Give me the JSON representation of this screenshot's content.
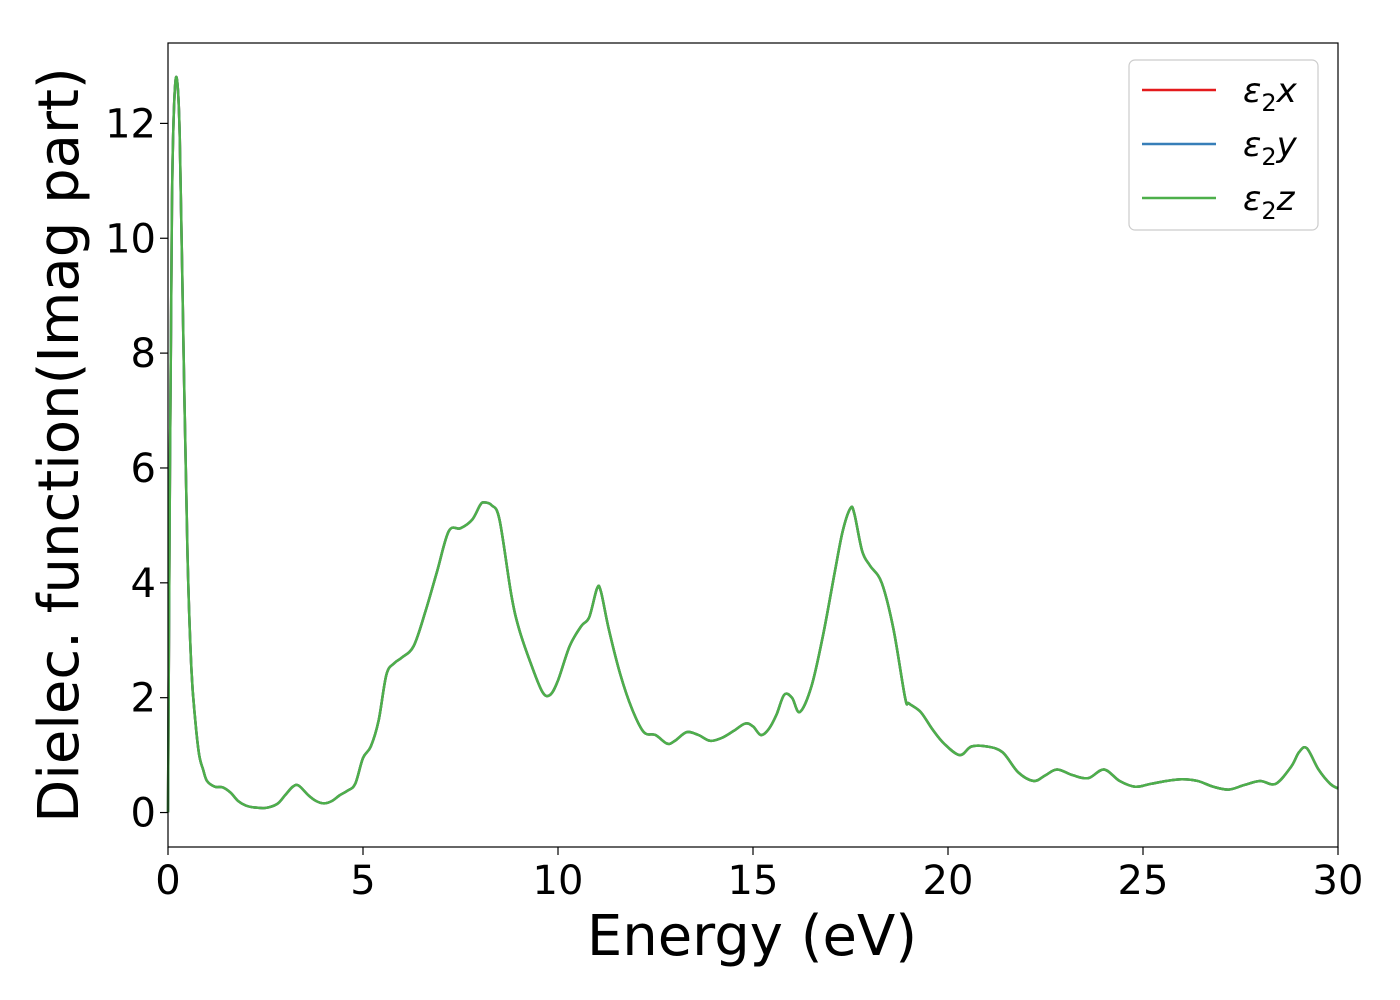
{
  "chart_data": {
    "type": "line",
    "title": "",
    "xlabel": "Energy (eV)",
    "ylabel": "Dielec. function(Imag part)",
    "xlim": [
      0,
      30
    ],
    "ylim": [
      -0.6,
      13.4
    ],
    "xticks": [
      0,
      5,
      10,
      15,
      20,
      25,
      30
    ],
    "yticks": [
      0,
      2,
      4,
      6,
      8,
      10,
      12
    ],
    "grid": false,
    "legend_position": "top-right",
    "series": [
      {
        "name": "ε2x",
        "legend_base": "ε",
        "legend_sub": "2",
        "legend_tail": "x",
        "color": "#e41a1c"
      },
      {
        "name": "ε2y",
        "legend_base": "ε",
        "legend_sub": "2",
        "legend_tail": "y",
        "color": "#377eb8"
      },
      {
        "name": "ε2z",
        "legend_base": "ε",
        "legend_sub": "2",
        "legend_tail": "z",
        "color": "#4daf4a"
      }
    ],
    "x": [
      0,
      0.05,
      0.1,
      0.15,
      0.22,
      0.3,
      0.4,
      0.5,
      0.6,
      0.7,
      0.8,
      0.9,
      1.0,
      1.2,
      1.4,
      1.6,
      1.8,
      2.0,
      2.2,
      2.5,
      2.8,
      3.0,
      3.2,
      3.35,
      3.6,
      3.8,
      4.0,
      4.2,
      4.4,
      4.6,
      4.8,
      5.0,
      5.2,
      5.4,
      5.6,
      5.8,
      6.0,
      6.3,
      6.6,
      6.9,
      7.2,
      7.5,
      7.8,
      8.0,
      8.1,
      8.3,
      8.5,
      8.8,
      9.0,
      9.3,
      9.6,
      9.8,
      10.0,
      10.3,
      10.6,
      10.8,
      11.0,
      11.1,
      11.3,
      11.6,
      11.9,
      12.2,
      12.5,
      12.8,
      13.0,
      13.3,
      13.6,
      13.9,
      14.2,
      14.5,
      14.8,
      15.0,
      15.2,
      15.4,
      15.6,
      15.8,
      16.0,
      16.2,
      16.5,
      16.8,
      17.1,
      17.3,
      17.5,
      17.6,
      17.8,
      18.0,
      18.3,
      18.6,
      18.9,
      19.0,
      19.3,
      19.6,
      19.9,
      20.3,
      20.6,
      21.0,
      21.4,
      21.8,
      22.2,
      22.5,
      22.8,
      23.2,
      23.6,
      24.0,
      24.4,
      24.8,
      25.2,
      25.6,
      26.0,
      26.4,
      26.8,
      27.2,
      27.6,
      28.0,
      28.4,
      28.8,
      29.0,
      29.2,
      29.5,
      29.8,
      30.0
    ],
    "values": [
      0.0,
      6.0,
      10.5,
      12.2,
      12.8,
      11.8,
      8.0,
      4.5,
      2.5,
      1.6,
      1.0,
      0.75,
      0.55,
      0.45,
      0.44,
      0.35,
      0.2,
      0.12,
      0.09,
      0.08,
      0.15,
      0.3,
      0.45,
      0.47,
      0.3,
      0.2,
      0.16,
      0.2,
      0.3,
      0.38,
      0.5,
      0.95,
      1.15,
      1.6,
      2.4,
      2.6,
      2.7,
      2.9,
      3.5,
      4.2,
      4.9,
      4.95,
      5.1,
      5.35,
      5.4,
      5.35,
      5.1,
      3.8,
      3.2,
      2.6,
      2.1,
      2.05,
      2.3,
      2.9,
      3.25,
      3.4,
      3.9,
      3.85,
      3.2,
      2.4,
      1.8,
      1.4,
      1.35,
      1.2,
      1.25,
      1.4,
      1.35,
      1.25,
      1.3,
      1.42,
      1.55,
      1.5,
      1.35,
      1.45,
      1.7,
      2.05,
      2.0,
      1.75,
      2.2,
      3.1,
      4.2,
      4.9,
      5.3,
      5.2,
      4.55,
      4.3,
      4.0,
      3.2,
      2.0,
      1.9,
      1.75,
      1.45,
      1.2,
      1.0,
      1.15,
      1.15,
      1.05,
      0.7,
      0.55,
      0.65,
      0.75,
      0.65,
      0.6,
      0.75,
      0.55,
      0.45,
      0.5,
      0.55,
      0.58,
      0.55,
      0.45,
      0.4,
      0.48,
      0.55,
      0.5,
      0.8,
      1.05,
      1.12,
      0.75,
      0.5,
      0.42
    ]
  }
}
